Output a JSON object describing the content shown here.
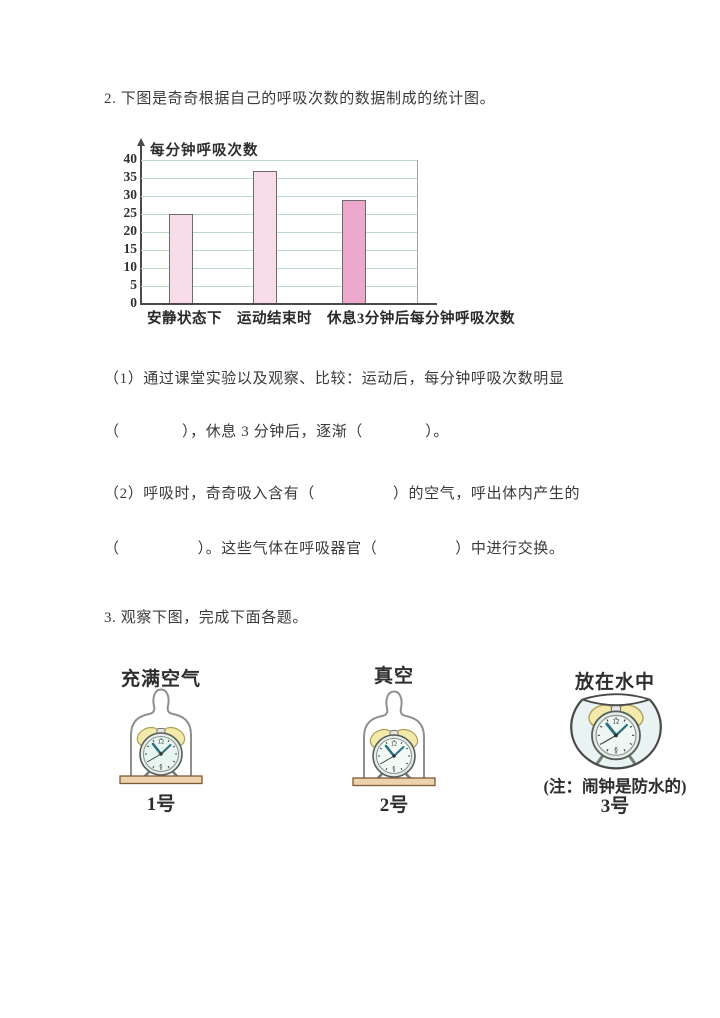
{
  "questions": {
    "q2_text": "2. 下图是奇奇根据自己的呼吸次数的数据制成的统计图。",
    "q2_sub1_line1": "（1）通过课堂实验以及观察、比较：运动后，每分钟呼吸次数明显",
    "q2_sub1_line2": "（　　　　），休息 3 分钟后，逐渐（　　　　）。",
    "q2_sub2_line1": "（2）呼吸时，奇奇吸入含有（　　　　　）的空气，呼出体内产生的",
    "q2_sub2_line2": "（　　　　　）。这些气体在呼吸器官（　　　　　）中进行交换。",
    "q3_text": "3. 观察下图，完成下面各题。"
  },
  "chart_data": {
    "type": "bar",
    "title": "每分钟呼吸次数",
    "categories": [
      "安静状态下",
      "运动结束时",
      "休息3分钟后"
    ],
    "values": [
      25,
      37,
      29
    ],
    "bar_colors": [
      "#f8dcea",
      "#f8dcea",
      "#eca9cd"
    ],
    "xlabel": "每分钟呼吸次数",
    "ylabel": "",
    "ylim": [
      0,
      40
    ],
    "ytick_step": 5,
    "grid": true,
    "legend": "none"
  },
  "figures": [
    {
      "title": "充满空气",
      "caption": "1号"
    },
    {
      "title": "真空",
      "caption": "2号"
    },
    {
      "title": "放在水中",
      "note": "(注：闹钟是防水的)",
      "caption": "3号"
    }
  ],
  "colors": {
    "bar_light": "#f8dcea",
    "bar_dark": "#eca9cd",
    "gridline": "#bcd8ca",
    "axis": "#4a4a4a",
    "bells": "#f2e9ab",
    "clock_face": "#e9f5f0",
    "board": "#ecd2ad",
    "water": "#e9f3f4"
  }
}
